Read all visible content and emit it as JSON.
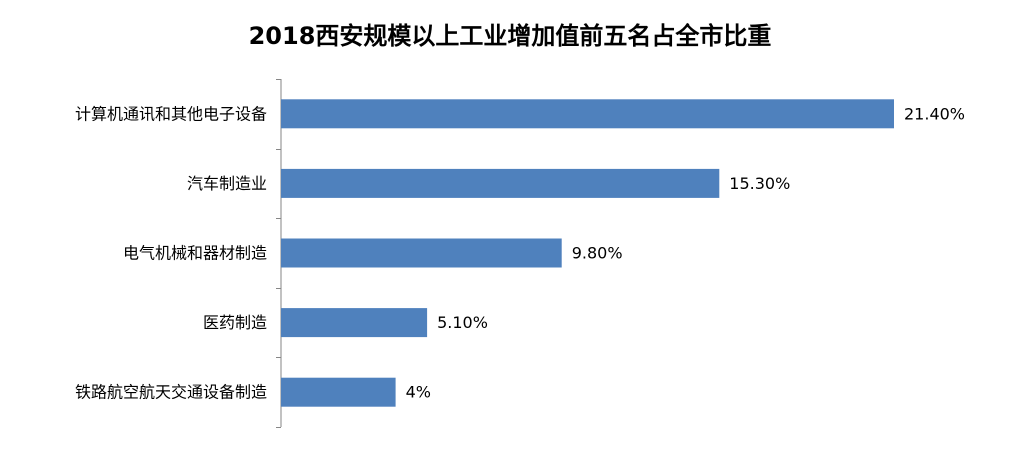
{
  "chart_data": {
    "type": "bar",
    "orientation": "horizontal",
    "title": "2018西安规模以上工业增加值前五名占全市比重",
    "xlabel": "",
    "ylabel": "",
    "categories": [
      "计算机通讯和其他电子设备",
      "汽车制造业",
      "电气机械和器材制造",
      "医药制造",
      "铁路航空航天交通设备制造"
    ],
    "values": [
      21.4,
      15.3,
      9.8,
      5.1,
      4.0
    ],
    "data_labels": [
      "21.40%",
      "15.30%",
      "9.80%",
      "5.10%",
      "4%"
    ],
    "value_unit": "%",
    "xlim": [
      0,
      21.4
    ],
    "grid": false,
    "legend": "none",
    "bar_color": "#4F81BD",
    "axis_color": "#868686"
  }
}
